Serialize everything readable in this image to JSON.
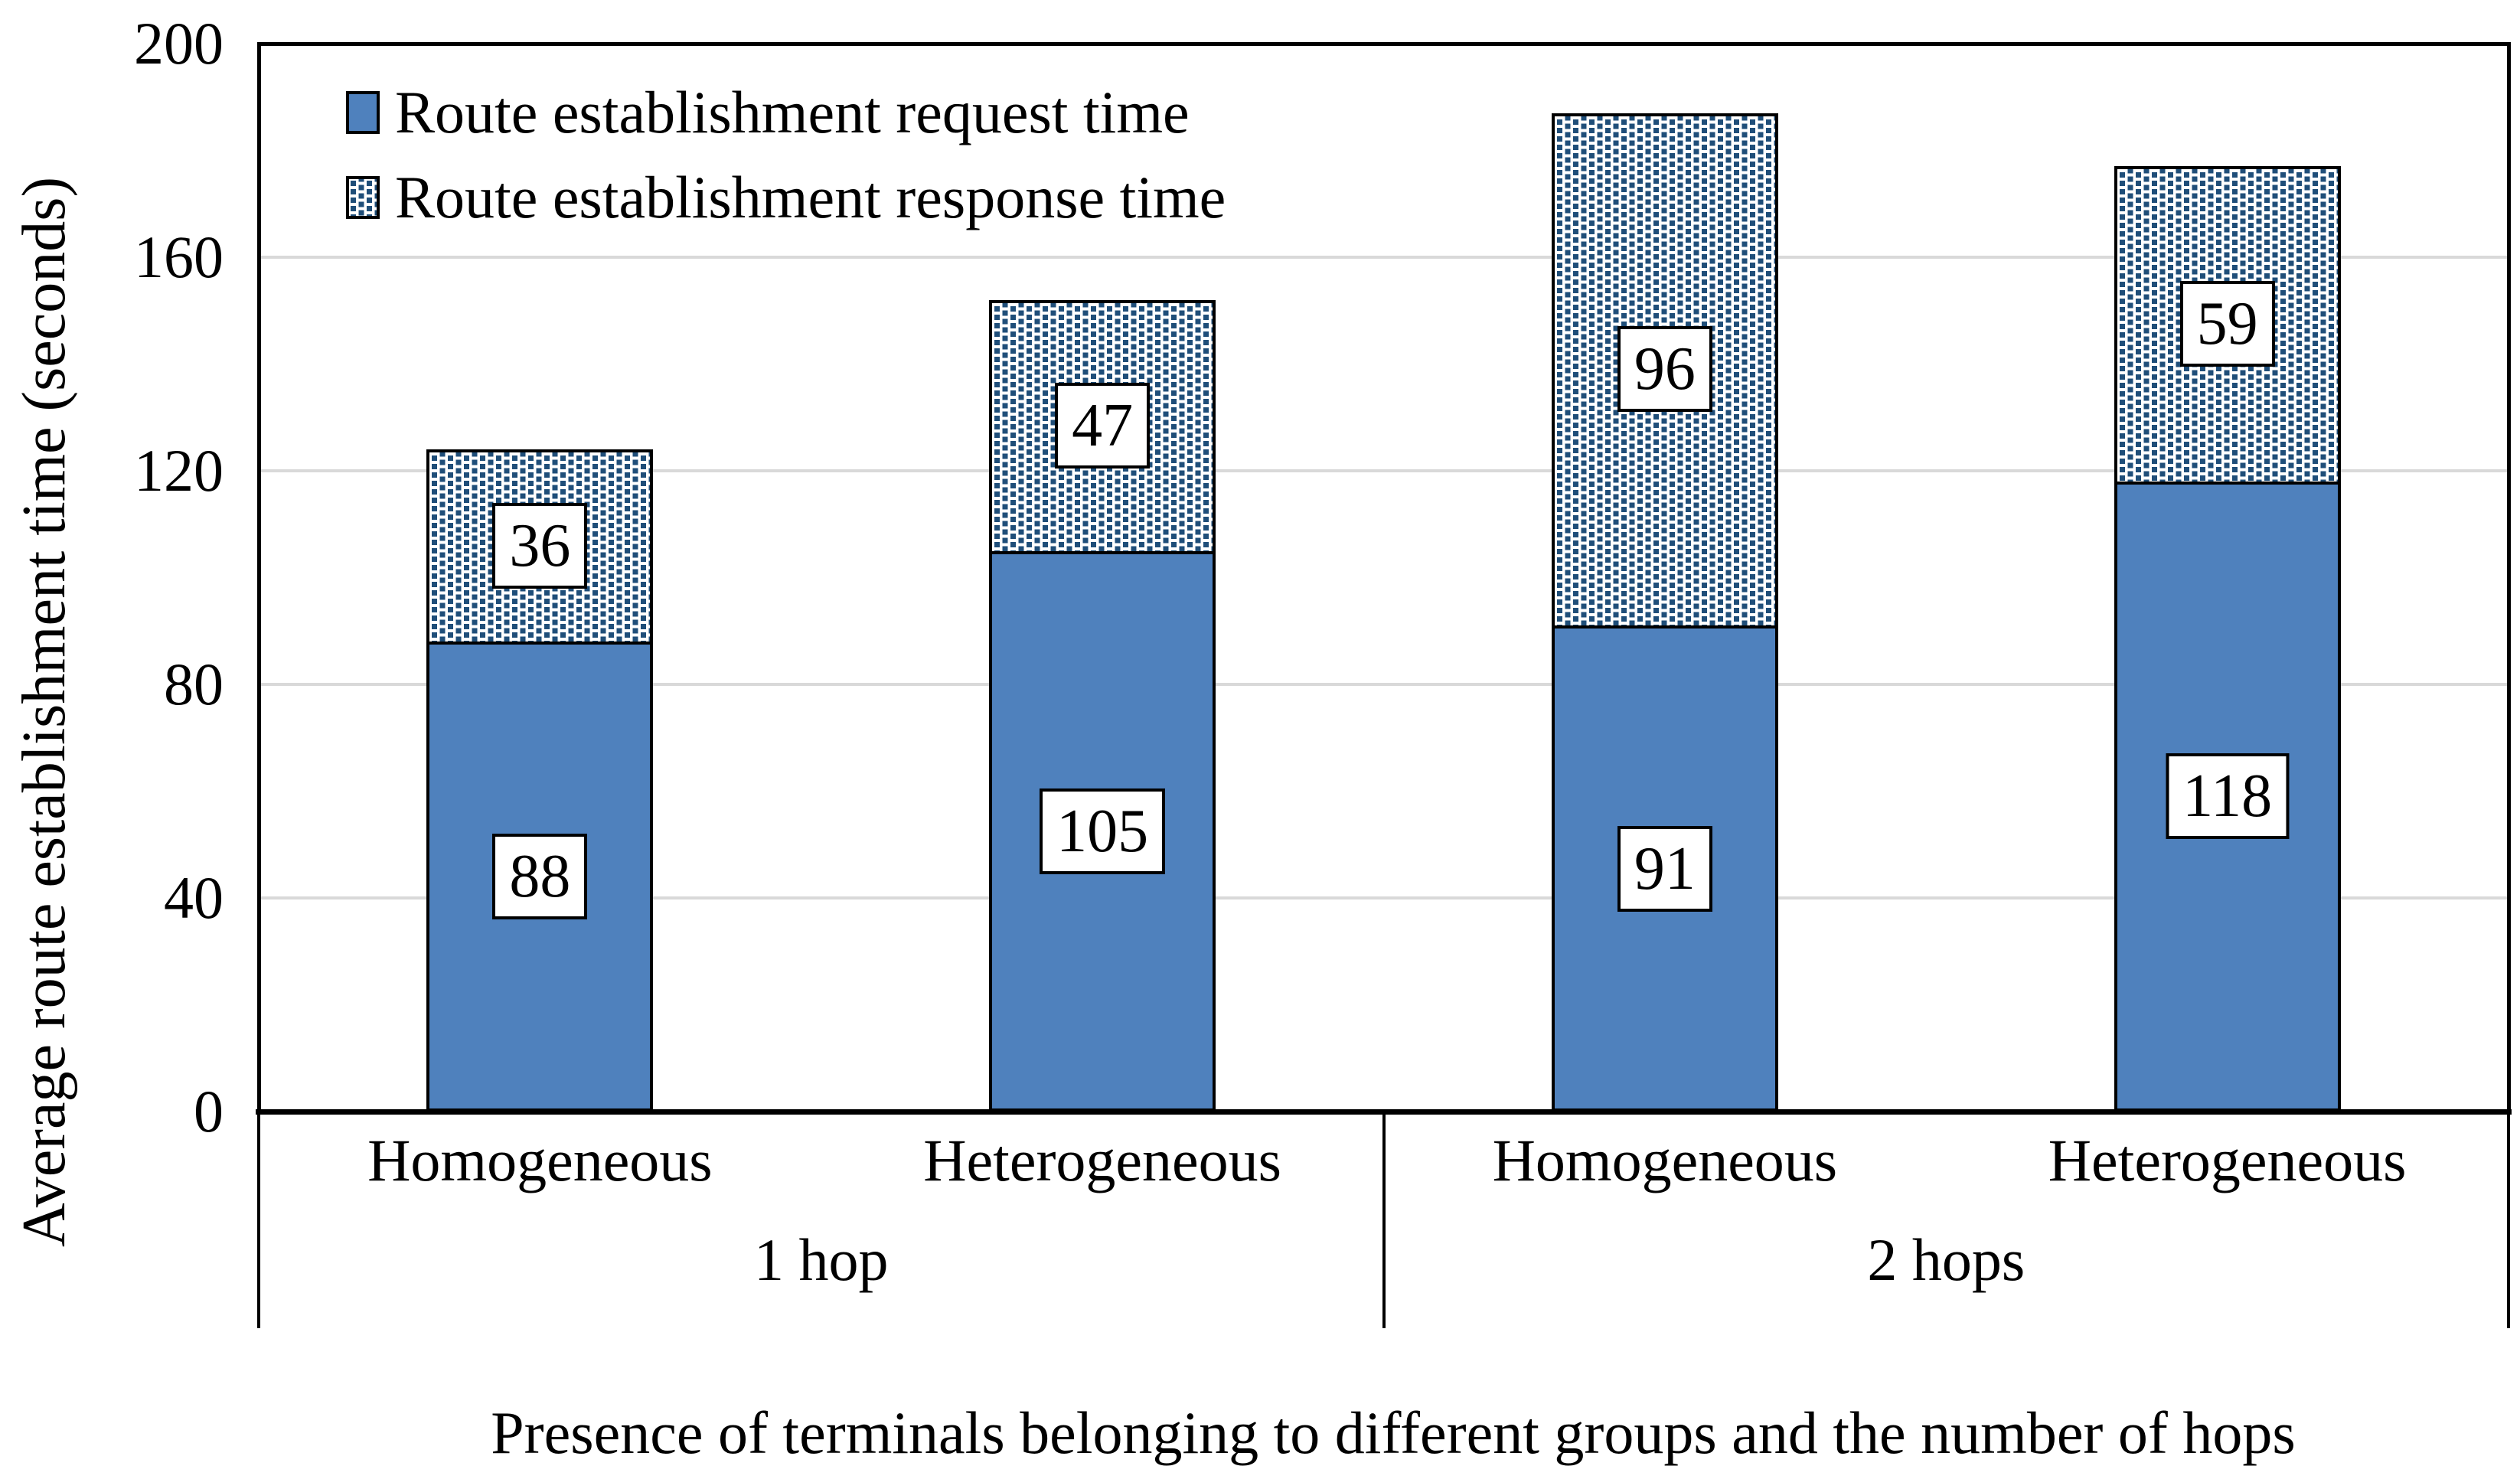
{
  "figure": {
    "y_axis_title": "Average route establishment time (seconds)",
    "x_axis_title": "Presence of terminals belonging to different groups and the number of hops"
  },
  "legend": [
    {
      "label": "Route establishment request time",
      "swatch": "solid-blue-square"
    },
    {
      "label": "Route establishment response time",
      "swatch": "dotted-pattern-square"
    }
  ],
  "colors": {
    "bar_fill": "#4F81BD",
    "pattern_dot": "#1F4E79",
    "gridline": "#D9D9D9",
    "line": "#000000",
    "background": "#FFFFFF"
  },
  "chart_data": {
    "type": "bar",
    "stacked": true,
    "title": "",
    "xlabel": "Presence of terminals belonging to different groups and the number of hops",
    "ylabel": "Average route establishment time (seconds)",
    "categories": [
      "Homogeneous",
      "Heterogeneous",
      "Homogeneous",
      "Heterogeneous"
    ],
    "group_labels": [
      "1 hop",
      "2 hops"
    ],
    "categories_per_group": 2,
    "series": [
      {
        "name": "Route establishment request time",
        "style": "solid",
        "values": [
          88,
          105,
          91,
          118
        ]
      },
      {
        "name": "Route establishment response time",
        "style": "dotted",
        "values": [
          36,
          47,
          96,
          59
        ]
      }
    ],
    "totals": [
      124,
      152,
      187,
      177
    ],
    "ylim": [
      0,
      200
    ],
    "yticks": [
      0,
      40,
      80,
      120,
      160,
      200
    ],
    "grid": true,
    "legend_position": "top-left-inside",
    "data_labels": "shown in white boxes at segment midpoints"
  }
}
